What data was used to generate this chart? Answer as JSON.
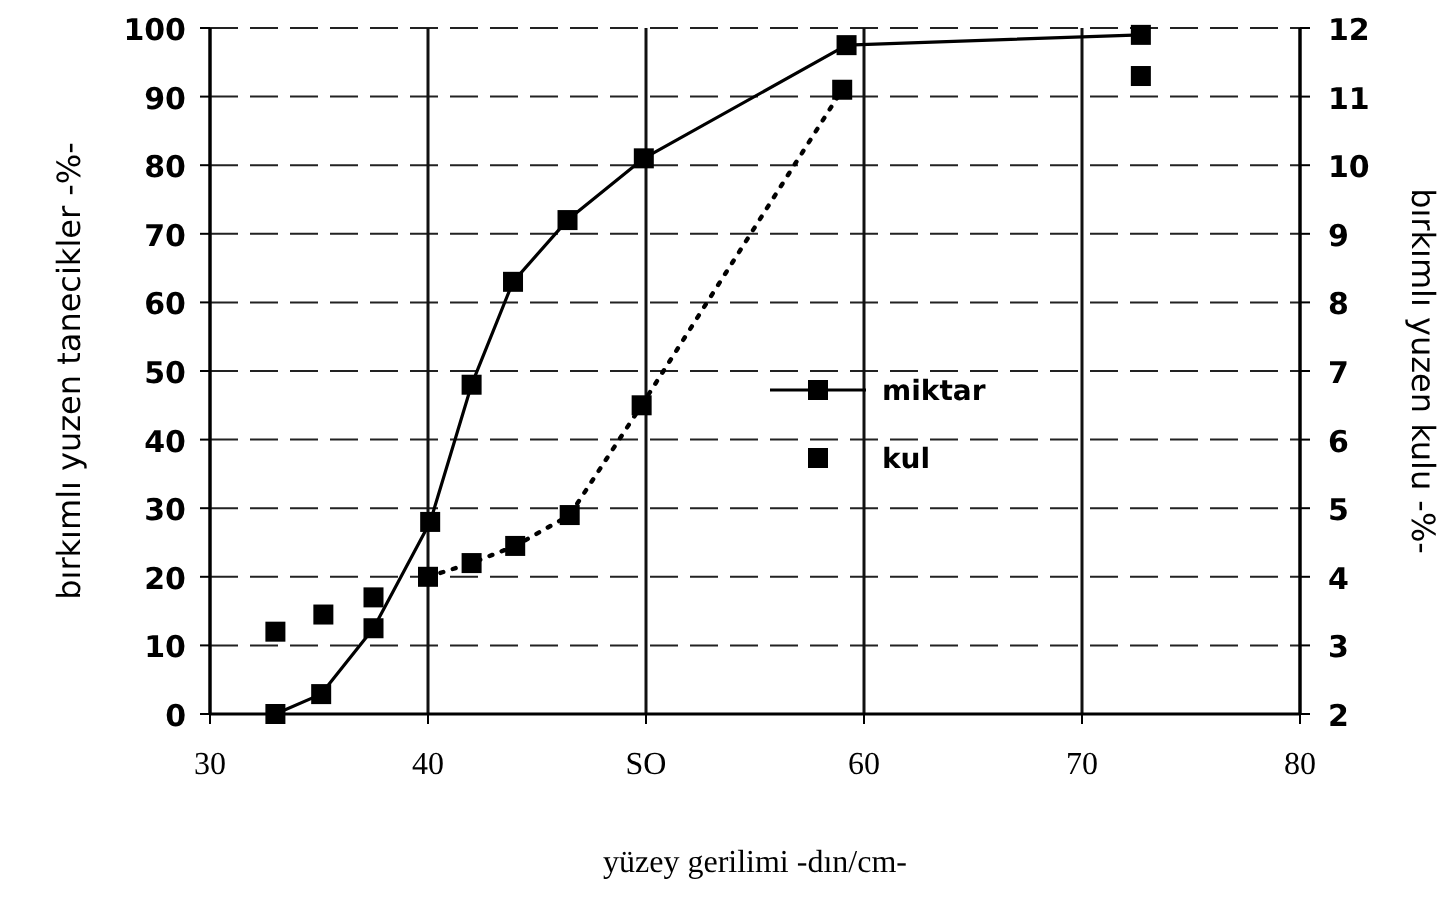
{
  "chart_data": {
    "type": "line",
    "xlabel": "yüzey gerilimi -dın/cm-",
    "ylabel": "bırkımlı yuzen tanecikler -%-",
    "y2label": "bırkımlı yuzen kulu -%-",
    "xlim": [
      30,
      80
    ],
    "xticks": [
      30,
      40,
      {
        "value": 50,
        "label": "SO"
      },
      60,
      70,
      80
    ],
    "ylim": [
      0,
      100
    ],
    "yticks": [
      0,
      10,
      20,
      30,
      40,
      50,
      60,
      70,
      80,
      90,
      100
    ],
    "y2lim": [
      2,
      12
    ],
    "y2ticks": [
      2,
      3,
      4,
      5,
      6,
      7,
      8,
      9,
      10,
      11,
      12
    ],
    "grid": true,
    "legend": "right",
    "marker": "square",
    "series": [
      {
        "name": "miktar",
        "color": "#000000",
        "line_style": "solid",
        "x": [
          33,
          35.1,
          37.5,
          40.1,
          42,
          43.9,
          46.4,
          49.9,
          59.2,
          72.7
        ],
        "values": [
          0,
          2.9,
          12.5,
          28,
          48,
          63,
          72,
          81,
          97.5,
          99
        ]
      },
      {
        "name": "kul",
        "type": "scatter",
        "axis": "y2",
        "color": "#000000",
        "x": [
          33,
          35.2,
          37.5,
          40,
          42,
          44,
          46.5,
          49.8,
          59,
          72.7
        ],
        "values": [
          3.2,
          3.45,
          3.7,
          4.0,
          4.2,
          4.45,
          4.9,
          6.5,
          11.1,
          11.3
        ]
      },
      {
        "type": "line",
        "axis": "y2",
        "color": "#000000",
        "line_style": "dotted",
        "marker": "none",
        "x": [
          40,
          42,
          44,
          46.5,
          49.8,
          59
        ],
        "values": [
          4.0,
          4.2,
          4.45,
          4.9,
          6.5,
          11.1
        ]
      }
    ]
  }
}
